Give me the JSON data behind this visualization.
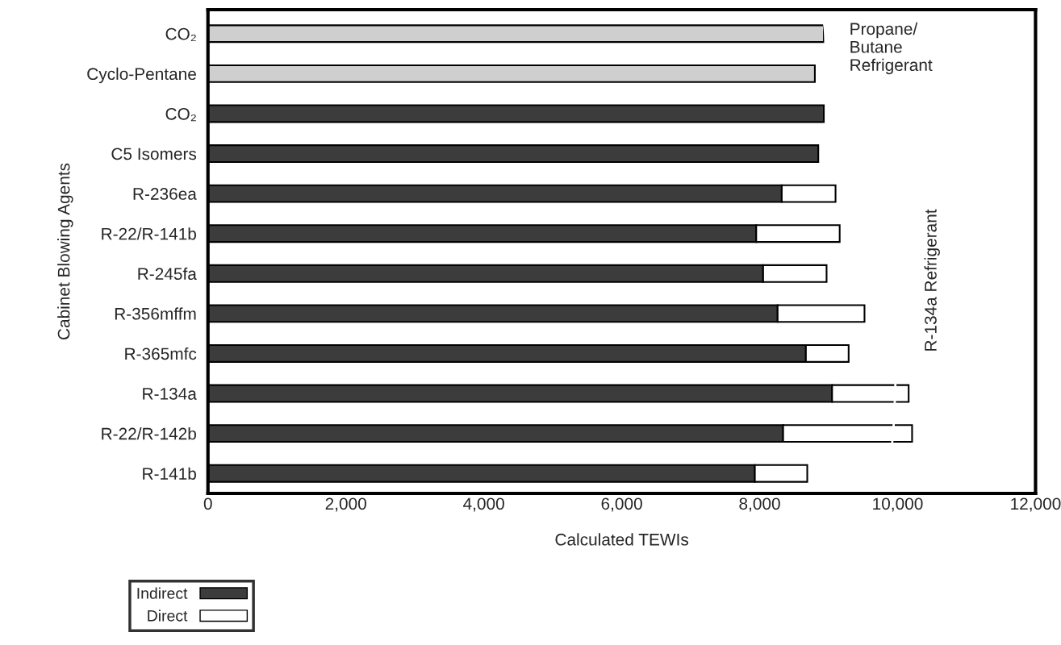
{
  "chart_data": {
    "type": "bar",
    "orientation": "horizontal",
    "stacked": true,
    "xlabel": "Calculated TEWIs",
    "ylabel": "Cabinet Blowing Agents",
    "categories": [
      "CO₂",
      "Cyclo-Pentane",
      "CO₂",
      "C5 Isomers",
      "R-236ea",
      "R-22/R-141b",
      "R-245fa",
      "R-356mffm",
      "R-365mfc",
      "R-134a",
      "R-22/R-142b",
      "R-141b"
    ],
    "series": [
      {
        "name": "Indirect",
        "color": "#3c3c3c",
        "colors": [
          "#cfcfcf",
          "#cfcfcf",
          "#3c3c3c",
          "#3c3c3c",
          "#3c3c3c",
          "#3c3c3c",
          "#3c3c3c",
          "#3c3c3c",
          "#3c3c3c",
          "#3c3c3c",
          "#3c3c3c",
          "#3c3c3c"
        ],
        "values": [
          8930,
          8800,
          8930,
          8850,
          8320,
          7950,
          8050,
          8260,
          8670,
          9050,
          8340,
          7930
        ]
      },
      {
        "name": "Direct",
        "color": "#ffffff",
        "values": [
          null,
          null,
          null,
          null,
          780,
          1210,
          920,
          1260,
          620,
          1110,
          1870,
          760
        ]
      }
    ],
    "xlim": [
      0,
      12000
    ],
    "xticks": [
      0,
      {
        "value": 2000,
        "label": "2,000"
      },
      {
        "value": 4000,
        "label": "4,000"
      },
      {
        "value": 6000,
        "label": "6,000"
      },
      {
        "value": 8000,
        "label": "8,000"
      },
      {
        "value": 10000,
        "label": "10,000"
      },
      {
        "value": 12000,
        "label": "12,000"
      }
    ],
    "annotations": [
      "Propane/\nButane\nRefrigerant",
      "R-134a Refrigerant"
    ],
    "grid": false,
    "legend": "bottom left"
  }
}
